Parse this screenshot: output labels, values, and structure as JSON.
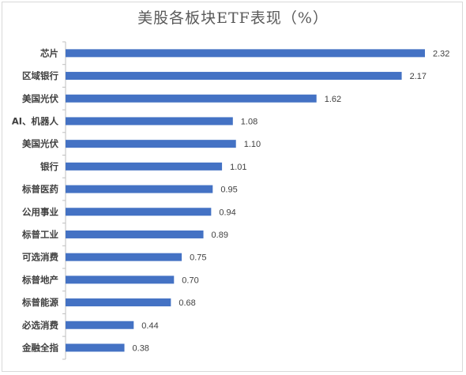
{
  "chart_data": {
    "type": "bar",
    "orientation": "horizontal",
    "title": "美股各板块ETF表现（%）",
    "xlabel": "",
    "ylabel": "",
    "categories": [
      "芯片",
      "区域银行",
      "美国光伏",
      "AI、机器人",
      "美国光伏",
      "银行",
      "标普医药",
      "公用事业",
      "标普工业",
      "可选消费",
      "标普地产",
      "标普能源",
      "必选消费",
      "金融全指"
    ],
    "values": [
      2.32,
      2.17,
      1.62,
      1.08,
      1.1,
      1.01,
      0.95,
      0.94,
      0.89,
      0.75,
      0.7,
      0.68,
      0.44,
      0.38
    ],
    "value_labels": [
      "2.32",
      "2.17",
      "1.62",
      "1.08",
      "1.10",
      "1.01",
      "0.95",
      "0.94",
      "0.89",
      "0.75",
      "0.70",
      "0.68",
      "0.44",
      "0.38"
    ],
    "xlim": [
      0,
      2.4
    ],
    "grid": false,
    "legend": "none",
    "bar_color": "#4472c4",
    "axis_color": "#bfbfbf"
  }
}
